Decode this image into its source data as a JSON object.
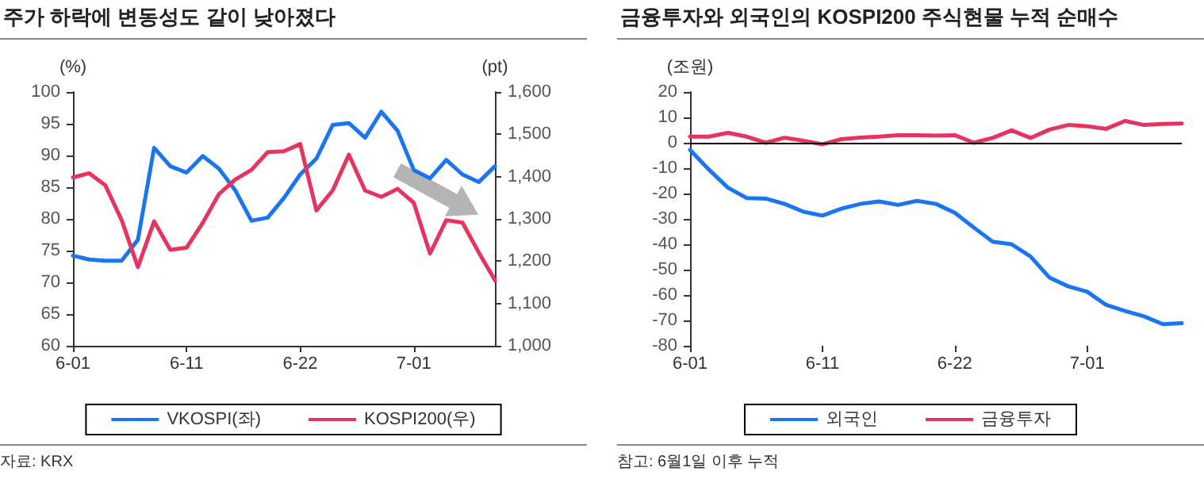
{
  "chart_data": [
    {
      "type": "line",
      "title": "주가 하락에 변동성도 같이 낮아졌다",
      "ylabel": "(%)",
      "y2label": "(pt)",
      "categories": [
        "6-01",
        null,
        null,
        null,
        null,
        null,
        null,
        "6-11",
        null,
        null,
        null,
        null,
        null,
        null,
        "6-22",
        null,
        null,
        null,
        null,
        null,
        null,
        "7-01",
        null,
        null,
        null,
        null,
        null
      ],
      "series": [
        {
          "name": "VKOSPI(좌)",
          "color": "#1a75f0",
          "values": [
            74.2,
            73.6,
            73.4,
            73.4,
            76.7,
            91.2,
            88.3,
            87.3,
            89.9,
            87.9,
            84.5,
            79.7,
            80.2,
            83.3,
            87,
            89.5,
            94.8,
            95.1,
            92.8,
            96.9,
            93.9,
            87.7,
            86.4,
            89.3,
            87,
            85.8,
            88.3
          ]
        },
        {
          "name": "KOSPI200(우)",
          "color": "#e8335e",
          "axis": "y2",
          "values": [
            1398,
            1408,
            1379,
            1297,
            1186,
            1294,
            1227,
            1232,
            1291,
            1359,
            1393,
            1416,
            1458,
            1460,
            1477,
            1320,
            1367,
            1452,
            1367,
            1352,
            1371,
            1338,
            1218,
            1297,
            1291,
            1221,
            1155
          ]
        }
      ],
      "ylim": [
        60,
        100
      ],
      "yticks": [
        60,
        65,
        70,
        75,
        80,
        85,
        90,
        95,
        100
      ],
      "y2lim": [
        1000,
        1600
      ],
      "y2ticks": [
        {
          "value": 1000,
          "label": "1,000"
        },
        {
          "value": 1100,
          "label": "1,100"
        },
        {
          "value": 1200,
          "label": "1,200"
        },
        {
          "value": 1300,
          "label": "1,300"
        },
        {
          "value": 1400,
          "label": "1,400"
        },
        {
          "value": 1500,
          "label": "1,500"
        },
        {
          "value": 1600,
          "label": "1,600"
        }
      ],
      "grid": false,
      "legend": "bottom",
      "marker": "none",
      "line_style": "solid",
      "annotations": [
        "자료: KRX"
      ]
    },
    {
      "type": "line",
      "title": "금융투자와 외국인의 KOSPI200 주식현물 누적 순매수",
      "ylabel": "(조원)",
      "categories": [
        "6-01",
        null,
        null,
        null,
        null,
        null,
        null,
        "6-11",
        null,
        null,
        null,
        null,
        null,
        null,
        "6-22",
        null,
        null,
        null,
        null,
        null,
        null,
        "7-01",
        null,
        null,
        null,
        null,
        null
      ],
      "series": [
        {
          "name": "외국인",
          "color": "#1a75f0",
          "values": [
            -2.8,
            -10.6,
            -17.7,
            -21.8,
            -22,
            -24.1,
            -27.2,
            -28.7,
            -26,
            -24.1,
            -23.1,
            -24.5,
            -22.9,
            -24.1,
            -27.6,
            -33.4,
            -39,
            -40,
            -44.8,
            -53.1,
            -56.6,
            -58.7,
            -63.9,
            -66.3,
            -68.4,
            -71.5,
            -71.1
          ]
        },
        {
          "name": "금융투자",
          "color": "#e8335e",
          "values": [
            2.4,
            2.4,
            3.9,
            2.4,
            0,
            2,
            0.8,
            -0.6,
            1.4,
            2,
            2.4,
            3,
            3,
            2.8,
            3,
            0,
            1.9,
            4.9,
            1.9,
            5.2,
            7,
            6.5,
            5.5,
            8.6,
            7,
            7.4,
            7.6
          ]
        }
      ],
      "ylim": [
        -80,
        20
      ],
      "yticks": [
        -80,
        -70,
        -60,
        -50,
        -40,
        -30,
        -20,
        -10,
        0,
        10,
        20
      ],
      "ref_lines": [
        {
          "axis": "y",
          "value": 0,
          "color": "#000000"
        }
      ],
      "grid": false,
      "legend": "bottom",
      "marker": "none",
      "line_style": "solid",
      "annotations": [
        "참고: 6월1일 이후 누적"
      ]
    }
  ]
}
